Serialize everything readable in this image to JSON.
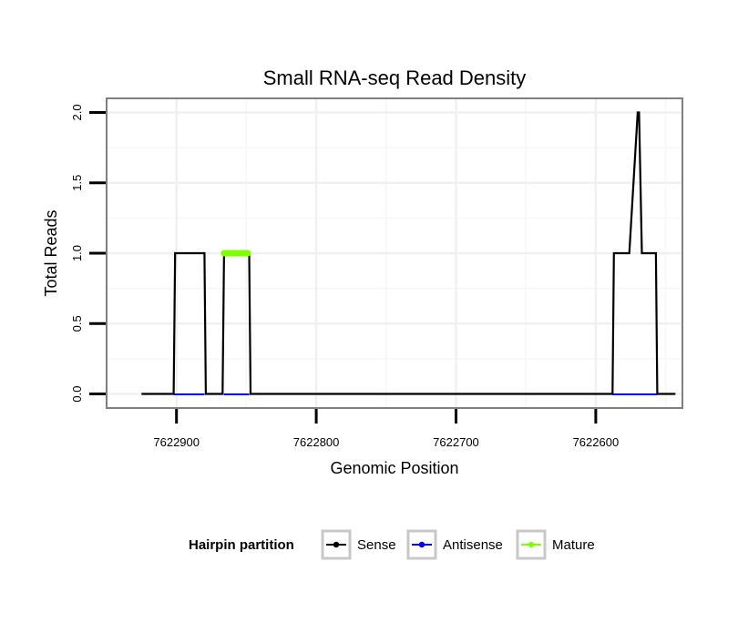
{
  "chart_data": {
    "type": "line",
    "title": "Small RNA-seq Read Density",
    "xlabel": "Genomic Position",
    "ylabel": "Total Reads",
    "x_reversed": true,
    "xlim": [
      7622950,
      7622538
    ],
    "ylim": [
      -0.1,
      2.1
    ],
    "x_ticks": [
      7622900,
      7622800,
      7622700,
      7622600
    ],
    "x_tick_labels": [
      "7622900",
      "7622800",
      "7622700",
      "7622600"
    ],
    "y_ticks": [
      0.0,
      0.5,
      1.0,
      1.5,
      2.0
    ],
    "y_tick_labels": [
      "0.0",
      "0.5",
      "1.0",
      "1.5",
      "2.0"
    ],
    "grid": true,
    "legend": {
      "position": "bottom",
      "title": "Hairpin partition",
      "entries": [
        {
          "label": "Sense",
          "color": "#000000"
        },
        {
          "label": "Antisense",
          "color": "#0000ff"
        },
        {
          "label": "Mature",
          "color": "#7fff00"
        }
      ]
    },
    "series": [
      {
        "name": "Sense",
        "color": "#000000",
        "x": [
          7622925,
          7622902,
          7622901,
          7622880,
          7622879,
          7622867,
          7622866,
          7622848,
          7622847,
          7622588,
          7622587,
          7622577,
          7622576,
          7622570,
          7622569,
          7622567,
          7622566,
          7622557,
          7622556,
          7622543
        ],
        "y": [
          0,
          0,
          1,
          1,
          0,
          0,
          1,
          1,
          0,
          0,
          1,
          1,
          1,
          2,
          2,
          1,
          1,
          1,
          0,
          0
        ]
      },
      {
        "name": "Antisense",
        "color": "#0000ff",
        "x": [
          7622902,
          7622880,
          7622866,
          7622848,
          7622588,
          7622556
        ],
        "y": [
          0,
          0,
          0,
          0,
          0,
          0
        ],
        "segments": [
          [
            0,
            1
          ],
          [
            2,
            3
          ],
          [
            4,
            5
          ]
        ]
      },
      {
        "name": "Mature",
        "color": "#7fff00",
        "x": [
          7622866,
          7622849
        ],
        "y": [
          1,
          1
        ]
      }
    ]
  }
}
